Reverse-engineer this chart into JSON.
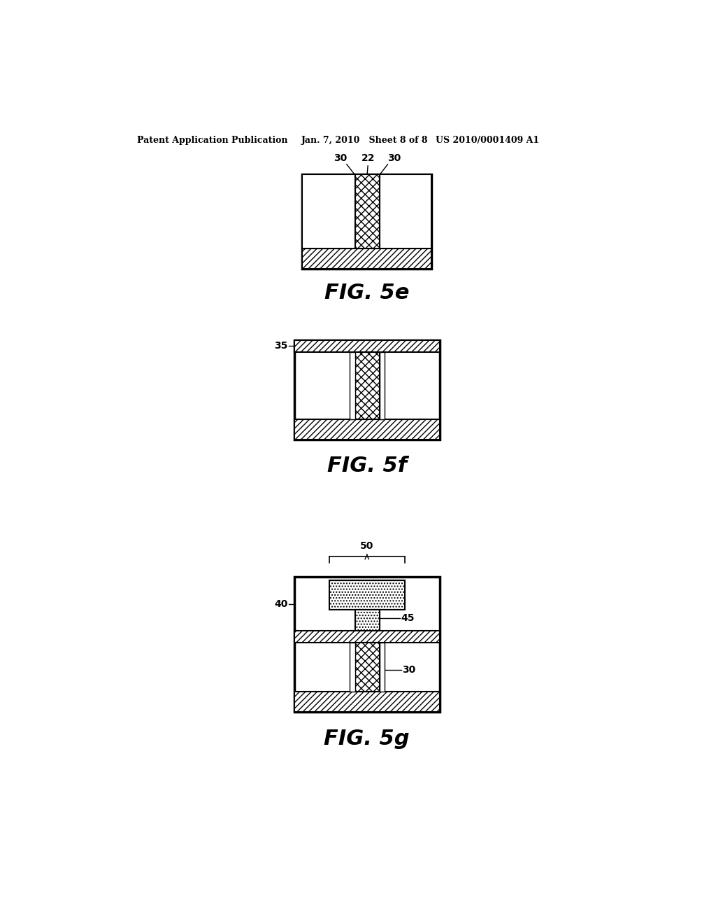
{
  "background_color": "#ffffff",
  "header_left": "Patent Application Publication",
  "header_mid": "Jan. 7, 2010   Sheet 8 of 8",
  "header_right": "US 2010/0001409 A1",
  "fig5e_label": "FIG. 5e",
  "fig5f_label": "FIG. 5f",
  "fig5g_label": "FIG. 5g"
}
